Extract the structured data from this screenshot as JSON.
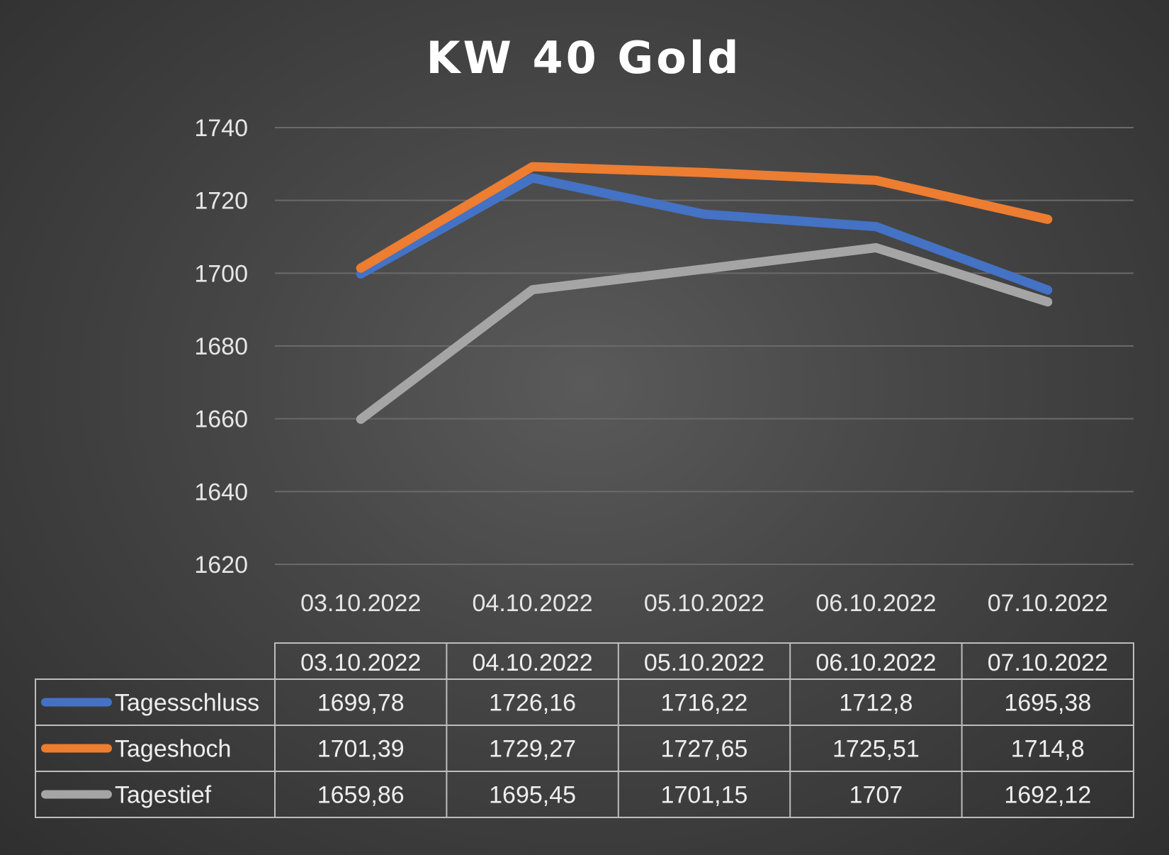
{
  "chart_data": {
    "type": "line",
    "title": "KW 40 Gold",
    "categories": [
      "03.10.2022",
      "04.10.2022",
      "05.10.2022",
      "06.10.2022",
      "07.10.2022"
    ],
    "ylim": [
      1620,
      1740
    ],
    "yticks": [
      "1740",
      "1720",
      "1700",
      "1680",
      "1660",
      "1640",
      "1620"
    ],
    "grid": true,
    "legend": "data-table-bottom",
    "series": [
      {
        "name": "Tagesschluss",
        "color": "#4472c4",
        "values": [
          1699.78,
          1726.16,
          1716.22,
          1712.8,
          1695.38
        ],
        "labels": [
          "1699,78",
          "1726,16",
          "1716,22",
          "1712,8",
          "1695,38"
        ]
      },
      {
        "name": "Tageshoch",
        "color": "#ed7d31",
        "values": [
          1701.39,
          1729.27,
          1727.65,
          1725.51,
          1714.8
        ],
        "labels": [
          "1701,39",
          "1729,27",
          "1727,65",
          "1725,51",
          "1714,8"
        ]
      },
      {
        "name": "Tagestief",
        "color": "#a5a5a5",
        "values": [
          1659.86,
          1695.45,
          1701.15,
          1707,
          1692.12
        ],
        "labels": [
          "1659,86",
          "1695,45",
          "1701,15",
          "1707",
          "1692,12"
        ]
      }
    ]
  }
}
